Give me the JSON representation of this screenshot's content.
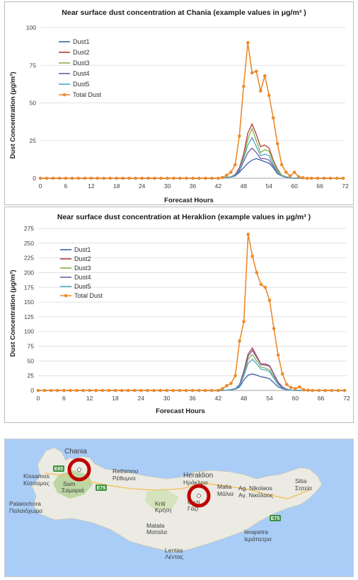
{
  "charts": [
    {
      "title": "Near surface dust concentration at Chania (example values in μg/m³ )",
      "ylabel": "Dust Concentration (μg/m³)",
      "xlabel": "Forecast Hours"
    },
    {
      "title": "Near surface dust concentration at Heraklion (example values in μg/m³ )",
      "ylabel": "Dust Concentration (μg/m³)",
      "xlabel": "Forecast Hours"
    }
  ],
  "chart_data": [
    {
      "type": "line",
      "title": "Near surface dust concentration at Chania (example values in μg/m³ )",
      "xlabel": "Forecast Hours",
      "ylabel": "Dust Concentration (μg/m³)",
      "xlim": [
        0,
        72
      ],
      "ylim": [
        0,
        100
      ],
      "xticks": [
        0,
        6,
        12,
        18,
        24,
        30,
        36,
        42,
        48,
        54,
        60,
        66,
        72
      ],
      "yticks": [
        0,
        25,
        50,
        75,
        100
      ],
      "grid": true,
      "legend": "left",
      "x": [
        0,
        1.5,
        3,
        4.5,
        6,
        7.5,
        9,
        10.5,
        12,
        13.5,
        15,
        16.5,
        18,
        19.5,
        21,
        22.5,
        24,
        25.5,
        27,
        28.5,
        30,
        31.5,
        33,
        34.5,
        36,
        37.5,
        39,
        40.5,
        42,
        43,
        44,
        45,
        46,
        47,
        48,
        49,
        50,
        51,
        52,
        53,
        54,
        55,
        56,
        57,
        58,
        59,
        60,
        61,
        62,
        63,
        64,
        65.5,
        67,
        68.5,
        70,
        71.5
      ],
      "series": [
        {
          "name": "Dust1",
          "color": "#3b5fa6",
          "values": [
            0,
            0,
            0,
            0,
            0,
            0,
            0,
            0,
            0,
            0,
            0,
            0,
            0,
            0,
            0,
            0,
            0,
            0,
            0,
            0,
            0,
            0,
            0,
            0,
            0,
            0,
            0,
            0,
            0,
            0.2,
            0.5,
            0.8,
            1.5,
            4,
            7,
            10,
            12,
            13,
            12,
            11,
            10,
            7,
            3,
            1.5,
            0.6,
            0.2,
            0,
            0,
            0,
            0,
            0,
            0,
            0,
            0,
            0,
            0
          ]
        },
        {
          "name": "Dust2",
          "color": "#b23a3a",
          "values": [
            0,
            0,
            0,
            0,
            0,
            0,
            0,
            0,
            0,
            0,
            0,
            0,
            0,
            0,
            0,
            0,
            0,
            0,
            0,
            0,
            0,
            0,
            0,
            0,
            0,
            0,
            0,
            0,
            0,
            0.2,
            0.5,
            1,
            2.5,
            7,
            16,
            30,
            36,
            29,
            21,
            22,
            20,
            12,
            6,
            2,
            1,
            0.3,
            0,
            0,
            0,
            0,
            0,
            0,
            0,
            0,
            0,
            0
          ]
        },
        {
          "name": "Dust3",
          "color": "#86b14a",
          "values": [
            0,
            0,
            0,
            0,
            0,
            0,
            0,
            0,
            0,
            0,
            0,
            0,
            0,
            0,
            0,
            0,
            0,
            0,
            0,
            0,
            0,
            0,
            0,
            0,
            0,
            0,
            0,
            0,
            0,
            0.2,
            0.5,
            1,
            2,
            6,
            14,
            26,
            33,
            25,
            17,
            19,
            18,
            11,
            5,
            2,
            0.8,
            0.3,
            0,
            0,
            0,
            0,
            0,
            0,
            0,
            0,
            0,
            0
          ]
        },
        {
          "name": "Dust4",
          "color": "#7a5aa6",
          "values": [
            0,
            0,
            0,
            0,
            0,
            0,
            0,
            0,
            0,
            0,
            0,
            0,
            0,
            0,
            0,
            0,
            0,
            0,
            0,
            0,
            0,
            0,
            0,
            0,
            0,
            0,
            0,
            0,
            0,
            0.2,
            0.4,
            0.8,
            1.8,
            5,
            11,
            17,
            20,
            17,
            13,
            13,
            12,
            8,
            4,
            1.5,
            0.6,
            0.2,
            0,
            0,
            0,
            0,
            0,
            0,
            0,
            0,
            0,
            0
          ]
        },
        {
          "name": "Dust5",
          "color": "#4aa9c6",
          "values": [
            0,
            0,
            0,
            0,
            0,
            0,
            0,
            0,
            0,
            0,
            0,
            0,
            0,
            0,
            0,
            0,
            0,
            0,
            0,
            0,
            0,
            0,
            0,
            0,
            0,
            0,
            0,
            0,
            0,
            0.2,
            0.5,
            0.9,
            2,
            6,
            13,
            22,
            27,
            21,
            15,
            16,
            15,
            9,
            4,
            1.6,
            0.7,
            0.2,
            0,
            0,
            0,
            0,
            0,
            0,
            0,
            0,
            0,
            0
          ]
        },
        {
          "name": "Total Dust",
          "color": "#ee8a2a",
          "marker": "circle",
          "values": [
            0,
            0,
            0,
            0,
            0,
            0,
            0,
            0,
            0,
            0,
            0,
            0,
            0,
            0,
            0,
            0,
            0,
            0,
            0,
            0,
            0,
            0,
            0,
            0,
            0,
            0,
            0,
            0,
            0,
            0.5,
            2,
            4,
            9,
            28,
            61,
            90,
            70,
            71,
            58,
            68,
            55,
            40,
            23,
            9,
            4,
            1.5,
            4,
            1,
            0.3,
            0,
            0,
            0,
            0,
            0,
            0,
            0
          ]
        }
      ]
    },
    {
      "type": "line",
      "title": "Near surface dust concentration at Heraklion (example values in μg/m³ )",
      "xlabel": "Forecast Hours",
      "ylabel": "Dust Concentration (μg/m³)",
      "xlim": [
        0,
        72
      ],
      "ylim": [
        0,
        275
      ],
      "xticks": [
        0,
        6,
        12,
        18,
        24,
        30,
        36,
        42,
        48,
        54,
        60,
        66,
        72
      ],
      "yticks": [
        0,
        25,
        50,
        75,
        100,
        125,
        150,
        175,
        200,
        225,
        250,
        275
      ],
      "grid": true,
      "legend": "left",
      "x": [
        0,
        1.5,
        3,
        4.5,
        6,
        7.5,
        9,
        10.5,
        12,
        13.5,
        15,
        16.5,
        18,
        19.5,
        21,
        22.5,
        24,
        25.5,
        27,
        28.5,
        30,
        31.5,
        33,
        34.5,
        36,
        37.5,
        39,
        40.5,
        42,
        43,
        44,
        45,
        46,
        47,
        48,
        49,
        50,
        51,
        52,
        53,
        54,
        55,
        56,
        57,
        58,
        59,
        60,
        61,
        62,
        63,
        64,
        65.5,
        67,
        68.5,
        70,
        71.5
      ],
      "series": [
        {
          "name": "Dust1",
          "color": "#3b5fa6",
          "values": [
            0,
            0,
            0,
            0,
            0,
            0,
            0,
            0,
            0,
            0,
            0,
            0,
            0,
            0,
            0,
            0,
            0,
            0,
            0,
            0,
            0,
            0,
            0,
            0,
            0,
            0,
            0,
            0,
            0,
            0,
            0.5,
            1,
            2,
            6,
            18,
            26,
            28,
            26,
            23,
            22,
            20,
            13,
            6,
            3,
            1,
            0.3,
            0,
            0,
            0,
            0,
            0,
            0,
            0,
            0,
            0,
            0
          ]
        },
        {
          "name": "Dust2",
          "color": "#b23a3a",
          "values": [
            0,
            0,
            0,
            0,
            0,
            0,
            0,
            0,
            0,
            0,
            0,
            0,
            0,
            0,
            0,
            0,
            0,
            0,
            0,
            0,
            0,
            0,
            0,
            0,
            0,
            0,
            0,
            0,
            0,
            0,
            0.5,
            1.5,
            3,
            10,
            33,
            62,
            72,
            58,
            45,
            45,
            42,
            28,
            14,
            6,
            2,
            0.6,
            0,
            0,
            0,
            0,
            0,
            0,
            0,
            0,
            0,
            0
          ]
        },
        {
          "name": "Dust3",
          "color": "#86b14a",
          "values": [
            0,
            0,
            0,
            0,
            0,
            0,
            0,
            0,
            0,
            0,
            0,
            0,
            0,
            0,
            0,
            0,
            0,
            0,
            0,
            0,
            0,
            0,
            0,
            0,
            0,
            0,
            0,
            0,
            0,
            0,
            0.5,
            1.2,
            2.5,
            9,
            28,
            53,
            61,
            50,
            40,
            38,
            35,
            23,
            11,
            5,
            2,
            0.5,
            0,
            0,
            0,
            0,
            0,
            0,
            0,
            0,
            0,
            0
          ]
        },
        {
          "name": "Dust4",
          "color": "#7a5aa6",
          "values": [
            0,
            0,
            0,
            0,
            0,
            0,
            0,
            0,
            0,
            0,
            0,
            0,
            0,
            0,
            0,
            0,
            0,
            0,
            0,
            0,
            0,
            0,
            0,
            0,
            0,
            0,
            0,
            0,
            0,
            0,
            0.5,
            1.4,
            3,
            10,
            32,
            58,
            68,
            56,
            44,
            43,
            41,
            27,
            13,
            5,
            2,
            0.5,
            0,
            0,
            0,
            0,
            0,
            0,
            0,
            0,
            0,
            0
          ]
        },
        {
          "name": "Dust5",
          "color": "#4aa9c6",
          "values": [
            0,
            0,
            0,
            0,
            0,
            0,
            0,
            0,
            0,
            0,
            0,
            0,
            0,
            0,
            0,
            0,
            0,
            0,
            0,
            0,
            0,
            0,
            0,
            0,
            0,
            0,
            0,
            0,
            0,
            0,
            0.5,
            1.2,
            2.5,
            8,
            25,
            46,
            53,
            45,
            36,
            35,
            32,
            21,
            10,
            4,
            1.5,
            0.4,
            0,
            0,
            0,
            0,
            0,
            0,
            0,
            0,
            0,
            0
          ]
        },
        {
          "name": "Total Dust",
          "color": "#ee8a2a",
          "marker": "circle",
          "values": [
            0,
            0,
            0,
            0,
            0,
            0,
            0,
            0,
            0,
            0,
            0,
            0,
            0,
            0,
            0,
            0,
            0,
            0,
            0,
            0,
            0,
            0,
            0,
            0,
            0,
            0,
            0,
            0,
            0,
            3,
            8,
            12,
            25,
            84,
            117,
            265,
            228,
            200,
            180,
            175,
            153,
            105,
            60,
            28,
            10,
            5,
            3,
            6,
            1,
            0.5,
            0,
            0,
            0,
            0,
            0,
            0
          ]
        }
      ]
    }
  ],
  "map": {
    "places": [
      {
        "id": "chania",
        "lines": [
          "Chania"
        ],
        "emph": true
      },
      {
        "id": "kissamos",
        "lines": [
          "Kissamos",
          "Κίσσαμος"
        ]
      },
      {
        "id": "sarm",
        "lines": [
          "Sam",
          "Σαμαριά"
        ]
      },
      {
        "id": "rethimno",
        "lines": [
          "Rethimno",
          "Ρέθυμνο"
        ]
      },
      {
        "id": "heraklion",
        "lines": [
          "Heraklion",
          "Ηράκλειο"
        ],
        "emph": true
      },
      {
        "id": "malia",
        "lines": [
          "Malia",
          "Μάλια"
        ]
      },
      {
        "id": "agnik",
        "lines": [
          "Ag. Nikolaos",
          "Αγ. Νικόλαος"
        ]
      },
      {
        "id": "sitia",
        "lines": [
          "Sitia",
          "Σητεία"
        ]
      },
      {
        "id": "palaiochora",
        "lines": [
          "Palaiochora",
          "Παλαιόχωρα"
        ]
      },
      {
        "id": "kriti",
        "lines": [
          "Κriti",
          "Κρήτη"
        ]
      },
      {
        "id": "gazi",
        "lines": [
          "Gazi",
          "Γάζι"
        ]
      },
      {
        "id": "matala",
        "lines": [
          "Matala",
          "Ματαλα"
        ]
      },
      {
        "id": "ierapetra",
        "lines": [
          "Ierapetra",
          "Ιεράπετρα"
        ]
      },
      {
        "id": "lentas",
        "lines": [
          "Lentas",
          "Λέντας"
        ]
      }
    ],
    "roads": [
      {
        "id": "e65",
        "label": "E65"
      },
      {
        "id": "e75a",
        "label": "E75"
      },
      {
        "id": "e75b",
        "label": "E75"
      }
    ]
  }
}
